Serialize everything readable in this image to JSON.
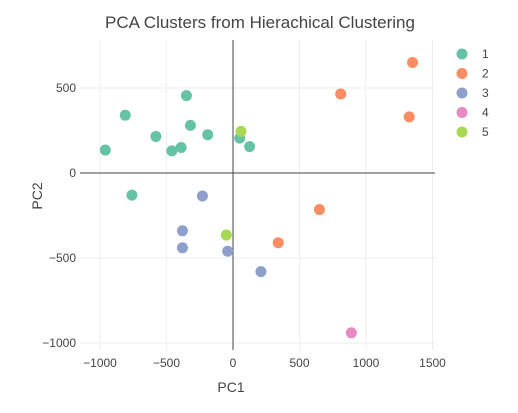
{
  "chart_data": {
    "type": "scatter",
    "title": "PCA Clusters from Hierachical Clustering",
    "xlabel": "PC1",
    "ylabel": "PC2",
    "xlim": [
      -1000,
      1500
    ],
    "ylim": [
      -1000,
      750
    ],
    "x_ticks": [
      -1000,
      -500,
      0,
      500,
      1000,
      1500
    ],
    "x_tick_labels": [
      "−1000",
      "−500",
      "0",
      "500",
      "1000",
      "1500"
    ],
    "y_ticks": [
      -1000,
      -500,
      0,
      500
    ],
    "y_tick_labels": [
      "−1000",
      "−500",
      "0",
      "500"
    ],
    "grid": true,
    "legend_position": "right",
    "series": [
      {
        "name": "1",
        "color": "#66c2a5",
        "points": [
          {
            "x": -960,
            "y": 135
          },
          {
            "x": -810,
            "y": 340
          },
          {
            "x": -760,
            "y": -130
          },
          {
            "x": -580,
            "y": 215
          },
          {
            "x": -460,
            "y": 130
          },
          {
            "x": -390,
            "y": 150
          },
          {
            "x": -350,
            "y": 455
          },
          {
            "x": -320,
            "y": 280
          },
          {
            "x": -190,
            "y": 225
          },
          {
            "x": 50,
            "y": 205
          },
          {
            "x": 125,
            "y": 155
          }
        ]
      },
      {
        "name": "2",
        "color": "#fc8d62",
        "points": [
          {
            "x": 810,
            "y": 465
          },
          {
            "x": 1350,
            "y": 650
          },
          {
            "x": 1325,
            "y": 330
          },
          {
            "x": 650,
            "y": -215
          },
          {
            "x": 340,
            "y": -410
          }
        ]
      },
      {
        "name": "3",
        "color": "#8da0cb",
        "points": [
          {
            "x": -230,
            "y": -135
          },
          {
            "x": -380,
            "y": -340
          },
          {
            "x": -380,
            "y": -440
          },
          {
            "x": -40,
            "y": -460
          },
          {
            "x": 210,
            "y": -580
          }
        ]
      },
      {
        "name": "4",
        "color": "#e78ac3",
        "points": [
          {
            "x": 890,
            "y": -940
          }
        ]
      },
      {
        "name": "5",
        "color": "#a6d854",
        "points": [
          {
            "x": 60,
            "y": 245
          },
          {
            "x": -50,
            "y": -365
          }
        ]
      }
    ]
  }
}
